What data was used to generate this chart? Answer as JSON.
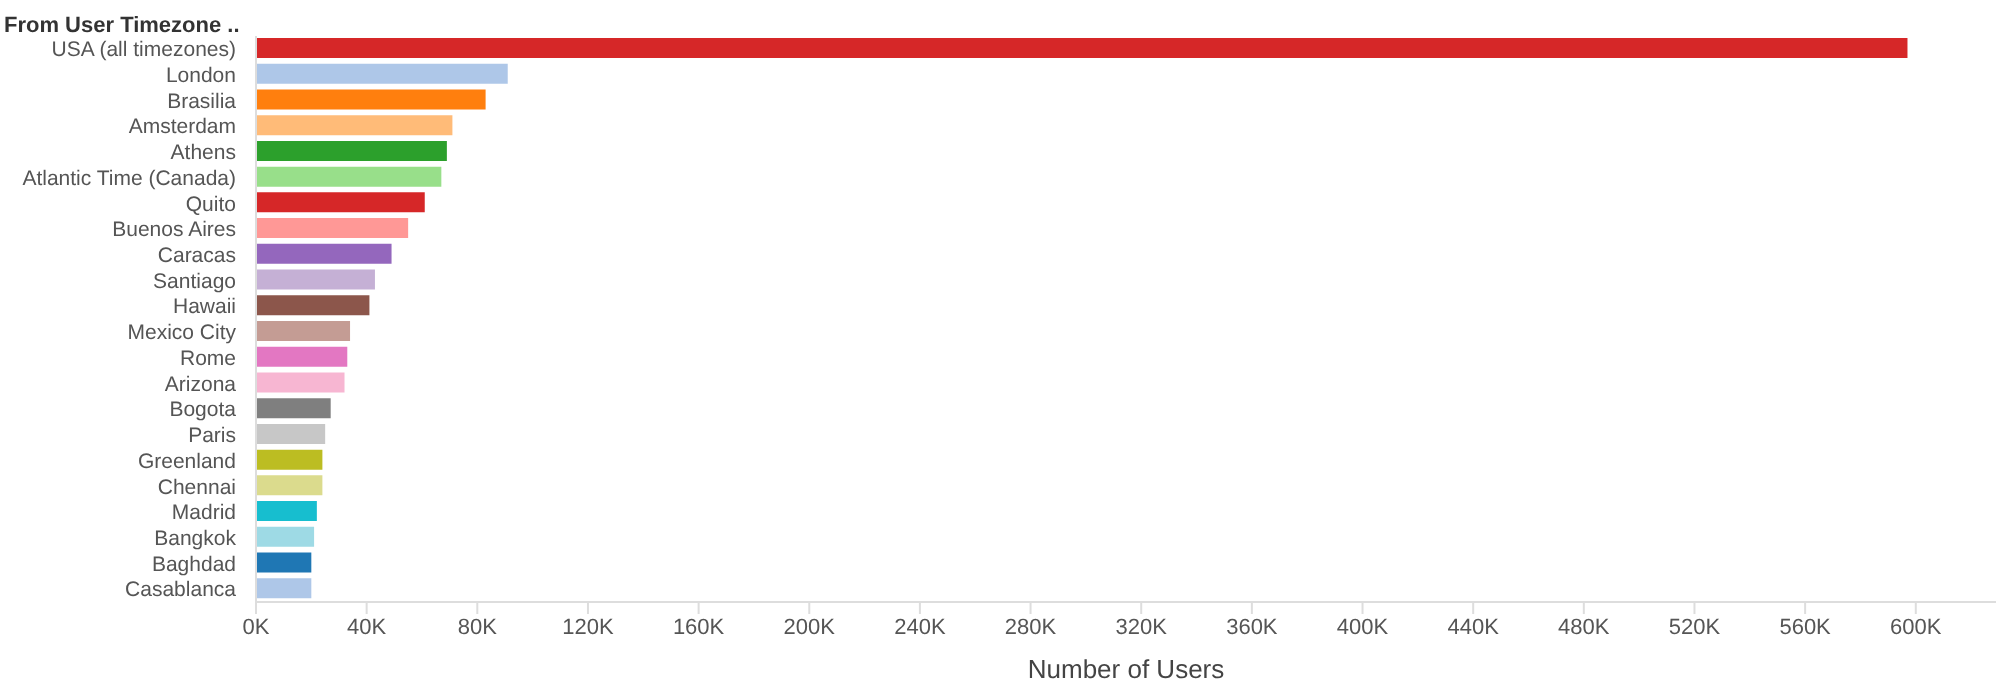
{
  "chart_data": {
    "type": "bar",
    "orientation": "horizontal",
    "title": "From User Timezone ..",
    "xlabel": "Number of Users",
    "categories": [
      "USA (all timezones)",
      "London",
      "Brasilia",
      "Amsterdam",
      "Athens",
      "Atlantic Time (Canada)",
      "Quito",
      "Buenos Aires",
      "Caracas",
      "Santiago",
      "Hawaii",
      "Mexico City",
      "Rome",
      "Arizona",
      "Bogota",
      "Paris",
      "Greenland",
      "Chennai",
      "Madrid",
      "Bangkok",
      "Baghdad",
      "Casablanca"
    ],
    "values": [
      597000,
      91000,
      83000,
      71000,
      69000,
      67000,
      61000,
      55000,
      49000,
      43000,
      41000,
      34000,
      33000,
      32000,
      27000,
      25000,
      24000,
      24000,
      22000,
      21000,
      20000,
      20000
    ],
    "colors": [
      "#d62728",
      "#aec7e8",
      "#ff7f0e",
      "#ffbb78",
      "#2ca02c",
      "#98df8a",
      "#d62728",
      "#ff9896",
      "#9467bd",
      "#c5b0d5",
      "#8c564b",
      "#c49c94",
      "#e377c2",
      "#f7b6d2",
      "#7f7f7f",
      "#c7c7c7",
      "#bcbd22",
      "#dbdb8d",
      "#17becf",
      "#9edae5",
      "#1f77b4",
      "#aec7e8"
    ],
    "xlim": [
      0,
      629000
    ],
    "xticks": [
      {
        "value": 0,
        "label": "0K"
      },
      {
        "value": 40000,
        "label": "40K"
      },
      {
        "value": 80000,
        "label": "80K"
      },
      {
        "value": 120000,
        "label": "120K"
      },
      {
        "value": 160000,
        "label": "160K"
      },
      {
        "value": 200000,
        "label": "200K"
      },
      {
        "value": 240000,
        "label": "240K"
      },
      {
        "value": 280000,
        "label": "280K"
      },
      {
        "value": 320000,
        "label": "320K"
      },
      {
        "value": 360000,
        "label": "360K"
      },
      {
        "value": 400000,
        "label": "400K"
      },
      {
        "value": 440000,
        "label": "440K"
      },
      {
        "value": 480000,
        "label": "480K"
      },
      {
        "value": 520000,
        "label": "520K"
      },
      {
        "value": 560000,
        "label": "560K"
      },
      {
        "value": 600000,
        "label": "600K"
      }
    ],
    "grid": false,
    "legend": false
  }
}
